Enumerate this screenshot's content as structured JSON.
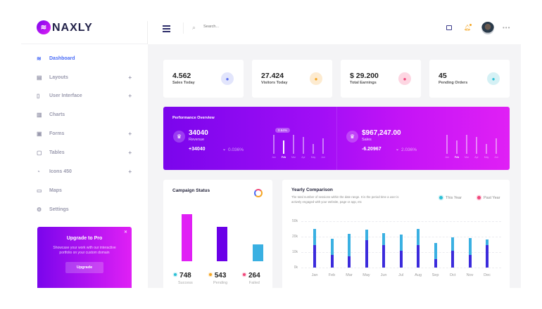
{
  "brand": {
    "name": "NAXLY",
    "logo_color": "#b01ef0"
  },
  "header": {
    "search_placeholder": "Search...",
    "icons": [
      "menu-icon",
      "search-icon",
      "chat-icon",
      "bell-icon",
      "avatar",
      "more-icon"
    ],
    "notification_dot_color": "#f5a623"
  },
  "sidebar": {
    "items": [
      {
        "label": "Dashboard",
        "icon": "layers-icon",
        "active": true,
        "expandable": false
      },
      {
        "label": "Layouts",
        "icon": "layout-icon",
        "expandable": true
      },
      {
        "label": "User Interface",
        "icon": "ui-icon",
        "expandable": true
      },
      {
        "label": "Charts",
        "icon": "chart-icon",
        "expandable": false
      },
      {
        "label": "Forms",
        "icon": "form-icon",
        "expandable": true
      },
      {
        "label": "Tables",
        "icon": "table-icon",
        "expandable": true
      },
      {
        "label": "Icons 450",
        "icon": "icons-icon",
        "expandable": true
      },
      {
        "label": "Maps",
        "icon": "map-icon",
        "expandable": false
      },
      {
        "label": "Settings",
        "icon": "settings-icon",
        "expandable": false
      }
    ],
    "plus": "+",
    "upgrade": {
      "title": "Upgrade to Pro",
      "text": "Showcase your work with our interactive portfolio on your custom domain",
      "button": "Upgrade",
      "close": "✕"
    }
  },
  "stats": [
    {
      "value": "4.562",
      "label": "Sales Today",
      "icon": "truck-icon",
      "color": "#5b6ff0",
      "bg": "#e2e5fc"
    },
    {
      "value": "27.424",
      "label": "Visitors Today",
      "icon": "bolt-icon",
      "color": "#f5a623",
      "bg": "#fdebd0"
    },
    {
      "value": "$ 29.200",
      "label": "Total Earnings",
      "icon": "cart-icon",
      "color": "#f0467a",
      "bg": "#fdd6e2"
    },
    {
      "value": "45",
      "label": "Pending Orders",
      "icon": "megaphone-icon",
      "color": "#2bc0d6",
      "bg": "#d5f1f5"
    }
  ],
  "performance": {
    "title": "Performance Overview",
    "months": [
      "Jan",
      "Feb",
      "Mar",
      "Apr",
      "May",
      "Jun"
    ],
    "highlight_month": "Feb",
    "left": {
      "value": "34040",
      "label": "Revenue",
      "change": "+34040",
      "percent": "0.036%",
      "tooltip": "0.54%",
      "bars": [
        80,
        55,
        80,
        70,
        40,
        65
      ]
    },
    "right": {
      "value": "$967,247.00",
      "label": "Sales",
      "change": "-6.20967",
      "percent": "2.036%",
      "bars": [
        80,
        55,
        80,
        70,
        40,
        65
      ]
    }
  },
  "campaign": {
    "title": "Campaign Status",
    "items": [
      {
        "value": "748",
        "label": "Success",
        "color": "#e020f5",
        "dot": "#2bc0d6"
      },
      {
        "value": "543",
        "label": "Pending",
        "color": "#6a00e8",
        "dot": "#f5a623"
      },
      {
        "value": "264",
        "label": "Failed",
        "color": "#3ab0e2",
        "dot": "#f0467a"
      }
    ]
  },
  "chart_data": {
    "type": "bar",
    "title": "Yearly Comparison",
    "subtitle": "The total number of sessions within the date range. It is the period time a user is actively engaged with your website, page or app, etc",
    "categories": [
      "Jan",
      "Feb",
      "Mar",
      "May",
      "Jun",
      "Jul",
      "Aug",
      "Sep",
      "Oct",
      "Nov",
      "Dec"
    ],
    "y_tick_labels": [
      "0k",
      "10k",
      "20k",
      "50k"
    ],
    "grid": true,
    "legend_position": "top-right",
    "legend": [
      {
        "name": "This Year",
        "color": "#2bc0d6"
      },
      {
        "name": "Past Year",
        "color": "#f0467a"
      }
    ],
    "stacked": true,
    "series": [
      {
        "color": "#3b2bdc",
        "values": [
          14.5,
          8.2,
          7.2,
          17.6,
          14.5,
          11.1,
          14.5,
          5.3,
          10.8,
          8.4,
          14.5
        ]
      },
      {
        "color": "#3ab0e2",
        "values": [
          24.9,
          18.8,
          21.7,
          24.4,
          22.3,
          21.5,
          24.9,
          15.9,
          19.5,
          18.9,
          18.2
        ]
      }
    ]
  }
}
